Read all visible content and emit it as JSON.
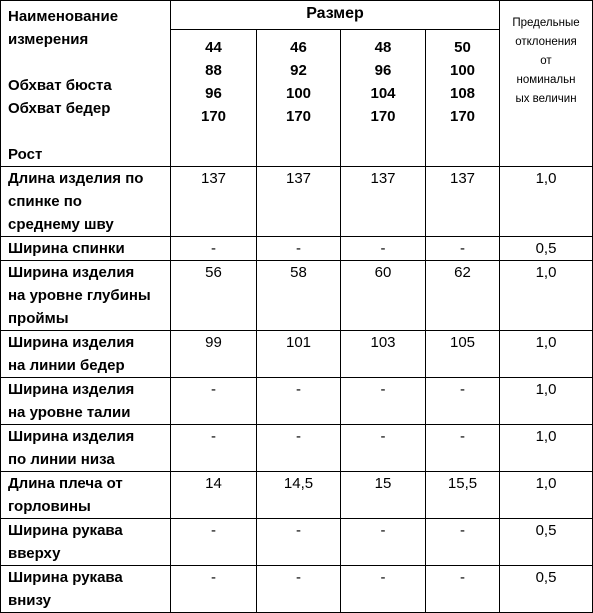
{
  "header": {
    "name_lines": [
      "Наименование",
      "измерения",
      "",
      "Обхват бюста",
      "Обхват бедер",
      "",
      "Рост"
    ],
    "size_title": "Размер",
    "size_columns": [
      {
        "lines": [
          "44",
          "88",
          "96",
          "170"
        ]
      },
      {
        "lines": [
          "46",
          "92",
          "100",
          "170"
        ]
      },
      {
        "lines": [
          "48",
          "96",
          "104",
          "170"
        ]
      },
      {
        "lines": [
          "50",
          "100",
          "108",
          "170"
        ]
      }
    ],
    "deviation_lines": [
      "Предельные",
      "отклонения",
      "от",
      "номинальн",
      "ых величин"
    ]
  },
  "rows": [
    {
      "name_lines": [
        "Длина изделия по",
        "спинке по",
        "среднему шву"
      ],
      "values": [
        "137",
        "137",
        "137",
        "137"
      ],
      "deviation": "1,0"
    },
    {
      "name_lines": [
        "Ширина спинки"
      ],
      "values": [
        "-",
        "-",
        "-",
        "-"
      ],
      "deviation": "0,5"
    },
    {
      "name_lines": [
        "Ширина изделия",
        "на уровне глубины",
        "проймы"
      ],
      "values": [
        "56",
        "58",
        "60",
        "62"
      ],
      "deviation": "1,0"
    },
    {
      "name_lines": [
        "Ширина изделия",
        "на линии бедер"
      ],
      "values": [
        "99",
        "101",
        "103",
        "105"
      ],
      "deviation": "1,0"
    },
    {
      "name_lines": [
        "Ширина изделия",
        "на уровне талии"
      ],
      "values": [
        "-",
        "-",
        "-",
        "-"
      ],
      "deviation": "1,0"
    },
    {
      "name_lines": [
        "Ширина изделия",
        "по линии низа"
      ],
      "values": [
        "-",
        "-",
        "-",
        "-"
      ],
      "deviation": "1,0"
    },
    {
      "name_lines": [
        "Длина плеча от",
        "горловины"
      ],
      "values": [
        "14",
        "14,5",
        "15",
        "15,5"
      ],
      "deviation": "1,0"
    },
    {
      "name_lines": [
        "Ширина рукава",
        "вверху"
      ],
      "values": [
        "-",
        "-",
        "-",
        "-"
      ],
      "deviation": "0,5"
    },
    {
      "name_lines": [
        "Ширина рукава",
        "внизу"
      ],
      "values": [
        "-",
        "-",
        "-",
        "-"
      ],
      "deviation": "0,5"
    }
  ]
}
